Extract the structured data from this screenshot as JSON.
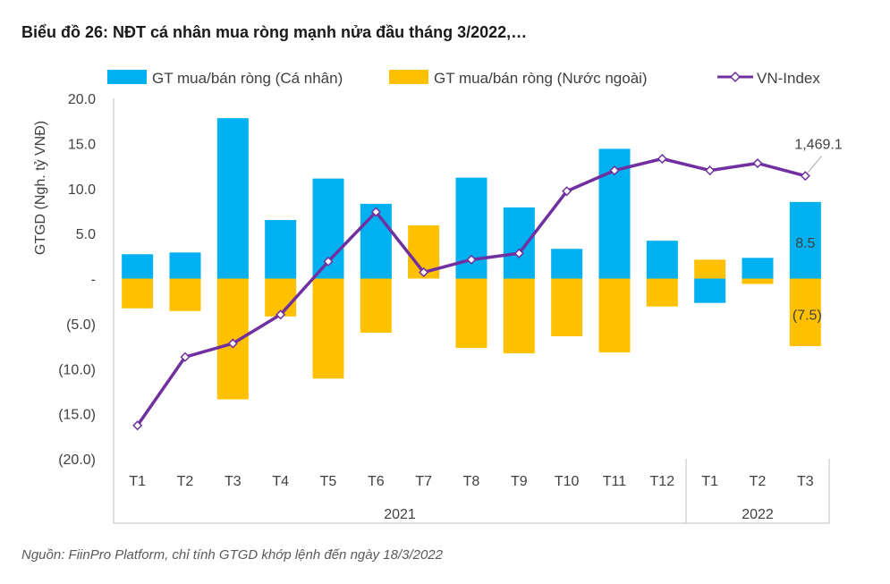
{
  "chart_data": {
    "type": "bar",
    "title": "Biểu đồ 26: NĐT cá nhân mua ròng mạnh nửa đầu tháng 3/2022,…",
    "ylabel": "GTGD (Ngh. tỷ VNĐ)",
    "ylim": [
      -20,
      20
    ],
    "y_ticks": [
      20,
      15,
      10,
      5,
      0,
      -5,
      -10,
      -15,
      -20
    ],
    "y_tick_labels": [
      "20.0",
      "15.0",
      "10.0",
      "5.0",
      "-",
      "(5.0)",
      "(10.0)",
      "(15.0)",
      "(20.0)"
    ],
    "categories": [
      "T1",
      "T2",
      "T3",
      "T4",
      "T5",
      "T6",
      "T7",
      "T8",
      "T9",
      "T10",
      "T11",
      "T12",
      "T1",
      "T2",
      "T3"
    ],
    "groups": [
      {
        "label": "2021",
        "span": 12
      },
      {
        "label": "2022",
        "span": 3
      }
    ],
    "series": [
      {
        "name": "GT mua/bán ròng (Cá nhân)",
        "type": "bar",
        "color": "#00B0F0",
        "values": [
          2.7,
          2.9,
          17.8,
          6.5,
          11.1,
          8.3,
          2.3,
          11.2,
          7.9,
          3.3,
          14.4,
          4.2,
          -2.7,
          2.3,
          8.5
        ]
      },
      {
        "name": "GT mua/bán ròng (Nước ngoài)",
        "type": "bar",
        "color": "#FFC000",
        "values": [
          -3.3,
          -3.6,
          -13.4,
          -4.2,
          -11.1,
          -6.0,
          5.9,
          -7.7,
          -8.3,
          -6.4,
          -8.2,
          -3.1,
          2.1,
          -0.6,
          -7.5
        ]
      },
      {
        "name": "VN-Index",
        "type": "line",
        "color": "#7030A0",
        "values": [
          -16.3,
          -8.7,
          -7.2,
          -4.0,
          1.9,
          7.4,
          0.7,
          2.1,
          2.8,
          9.7,
          12.0,
          13.3,
          12.0,
          12.8,
          11.4
        ]
      }
    ],
    "annotations": [
      {
        "text": "1,469.1",
        "series": "VN-Index",
        "index": 14
      },
      {
        "text": "8.5",
        "series": "GT mua/bán ròng (Cá nhân)",
        "index": 14
      },
      {
        "text": "(7.5)",
        "series": "GT mua/bán ròng (Nước ngoài)",
        "index": 14
      }
    ],
    "legend_position": "top",
    "grid": false
  },
  "source": "Nguồn: FiinPro Platform, chỉ tính GTGD khớp lệnh đến ngày 18/3/2022"
}
